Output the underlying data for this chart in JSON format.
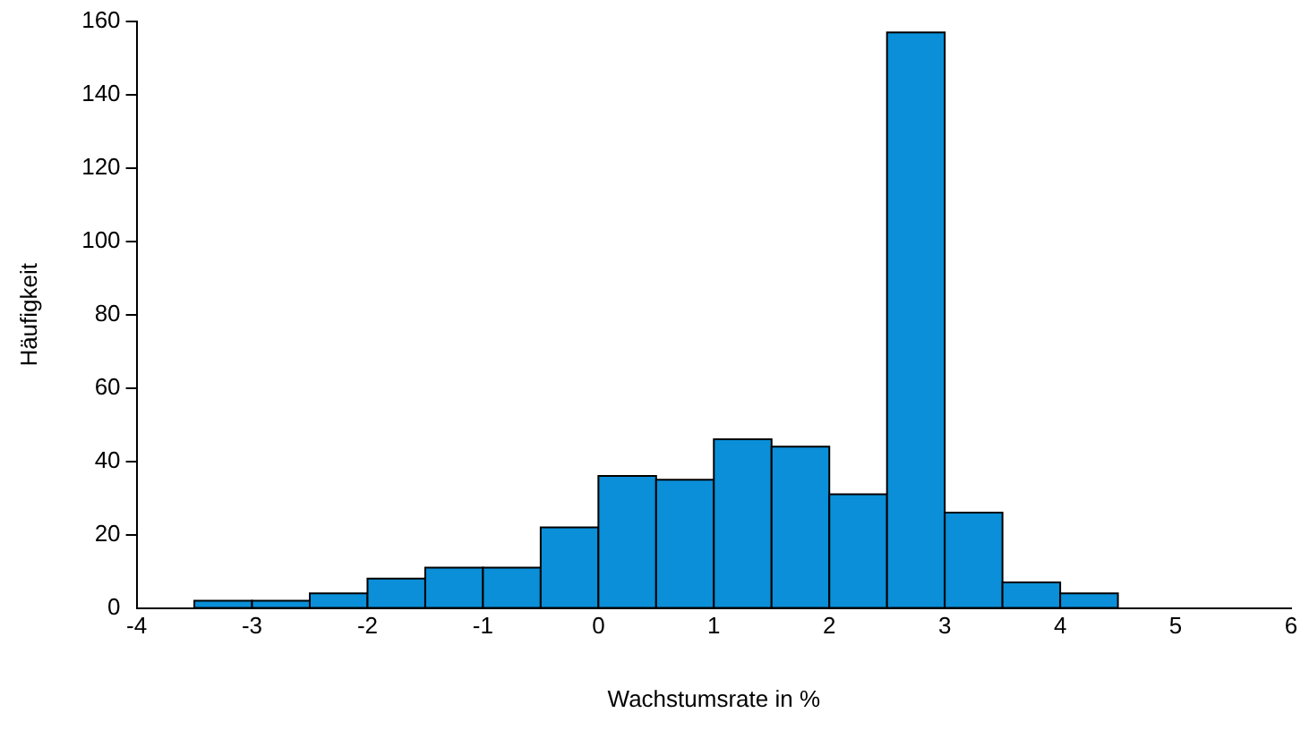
{
  "chart_data": {
    "type": "histogram",
    "xlabel": "Wachstumsrate in %",
    "ylabel": "Häufigkeit",
    "bins": [
      -3.5,
      -3,
      -2.5,
      -2,
      -1.5,
      -1,
      -0.5,
      0,
      0.5,
      1,
      1.5,
      2,
      2.5,
      3,
      3.5,
      4,
      4.5
    ],
    "values": [
      2,
      2,
      4,
      8,
      11,
      11,
      22,
      36,
      35,
      46,
      44,
      31,
      157,
      26,
      7,
      4
    ],
    "color": "#0a8fd8",
    "xlim": [
      -4,
      6
    ],
    "xticks": [
      -4,
      -3,
      -2,
      -1,
      0,
      1,
      2,
      3,
      4,
      5,
      6
    ],
    "ylim": [
      0,
      160
    ],
    "yticks": [
      0,
      20,
      40,
      60,
      80,
      100,
      120,
      140,
      160
    ],
    "grid": false,
    "legend": false
  }
}
